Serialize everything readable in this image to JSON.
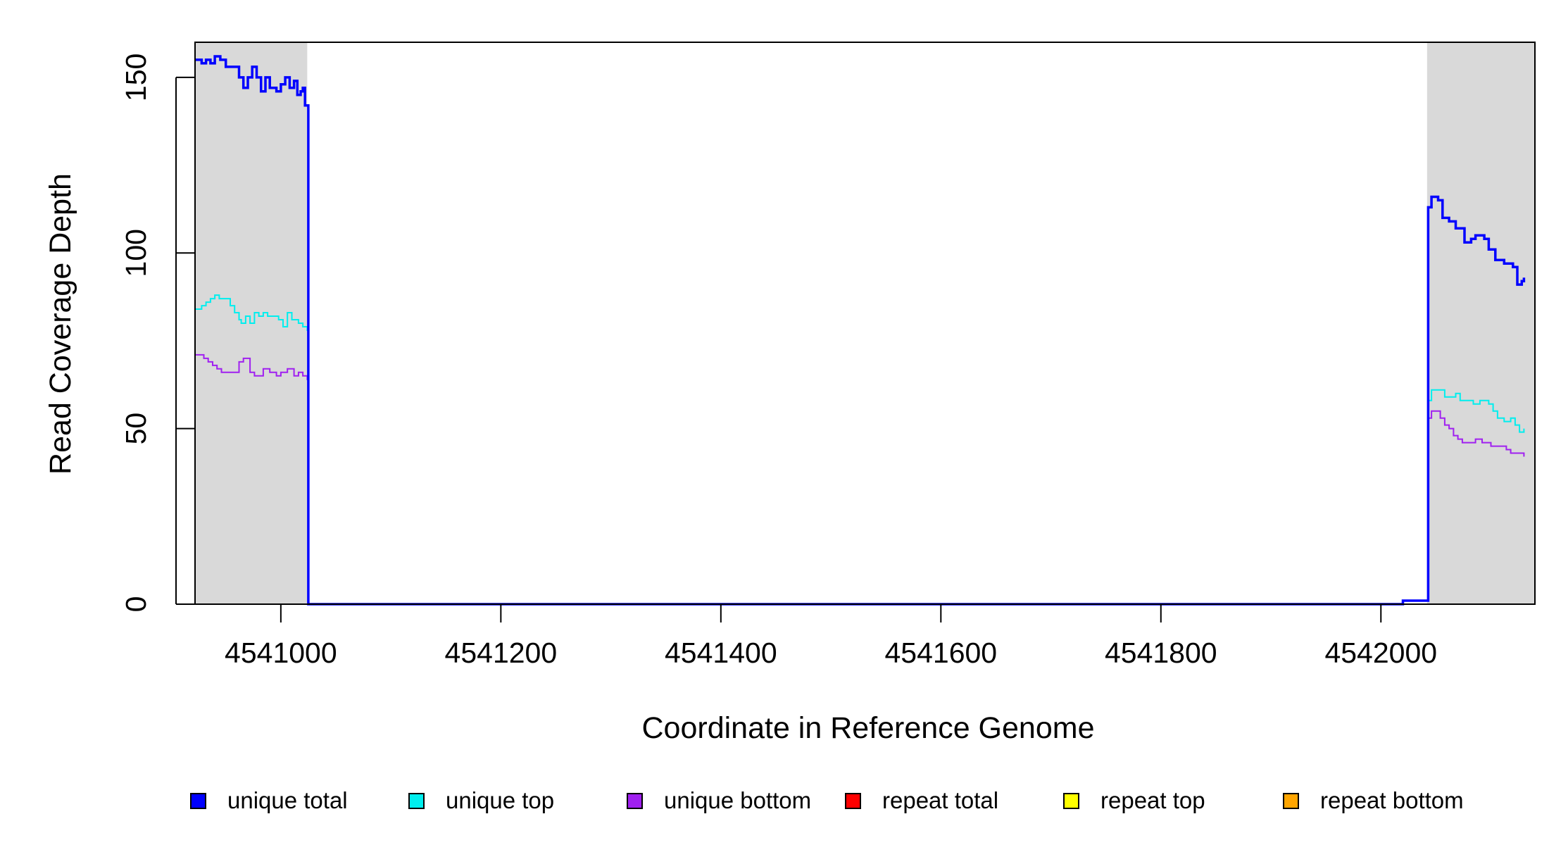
{
  "chart_data": {
    "type": "line",
    "title": "",
    "xlabel": "Coordinate in Reference Genome",
    "ylabel": "Read Coverage Depth",
    "xlim": [
      4540922,
      4542140
    ],
    "ylim": [
      0,
      160
    ],
    "xticks": [
      4541000,
      4541200,
      4541400,
      4541600,
      4541800,
      4542000
    ],
    "yticks": [
      0,
      50,
      100,
      150
    ],
    "shaded_regions": [
      [
        4540922,
        4541024
      ],
      [
        4542042,
        4542140
      ]
    ],
    "shade_color": "#d9d9d9",
    "grid": false,
    "legend_position": "bottom",
    "series": [
      {
        "name": "unique total",
        "color": "#0000ff",
        "points": [
          [
            4540922,
            155
          ],
          [
            4540928,
            154
          ],
          [
            4540932,
            155
          ],
          [
            4540936,
            154
          ],
          [
            4540940,
            156
          ],
          [
            4540945,
            155
          ],
          [
            4540950,
            153
          ],
          [
            4540958,
            153
          ],
          [
            4540962,
            150
          ],
          [
            4540966,
            147
          ],
          [
            4540970,
            150
          ],
          [
            4540974,
            153
          ],
          [
            4540978,
            150
          ],
          [
            4540982,
            146
          ],
          [
            4540986,
            150
          ],
          [
            4540990,
            147
          ],
          [
            4540996,
            146
          ],
          [
            4541000,
            148
          ],
          [
            4541004,
            150
          ],
          [
            4541008,
            147
          ],
          [
            4541012,
            149
          ],
          [
            4541015,
            145
          ],
          [
            4541018,
            146
          ],
          [
            4541020,
            147
          ],
          [
            4541022,
            142
          ],
          [
            4541024,
            142
          ],
          [
            4541025,
            0
          ],
          [
            4542018,
            0
          ],
          [
            4542020,
            1
          ],
          [
            4542042,
            1
          ],
          [
            4542043,
            113
          ],
          [
            4542046,
            116
          ],
          [
            4542052,
            115
          ],
          [
            4542056,
            110
          ],
          [
            4542062,
            109
          ],
          [
            4542068,
            107
          ],
          [
            4542076,
            103
          ],
          [
            4542082,
            104
          ],
          [
            4542086,
            105
          ],
          [
            4542094,
            104
          ],
          [
            4542098,
            101
          ],
          [
            4542104,
            98
          ],
          [
            4542112,
            97
          ],
          [
            4542120,
            96
          ],
          [
            4542124,
            91
          ],
          [
            4542128,
            92
          ],
          [
            4542130,
            93
          ]
        ]
      },
      {
        "name": "unique top",
        "color": "#00eeee",
        "points": [
          [
            4540922,
            84
          ],
          [
            4540928,
            85
          ],
          [
            4540932,
            86
          ],
          [
            4540936,
            87
          ],
          [
            4540940,
            88
          ],
          [
            4540944,
            87
          ],
          [
            4540950,
            87
          ],
          [
            4540954,
            85
          ],
          [
            4540958,
            83
          ],
          [
            4540962,
            81
          ],
          [
            4540964,
            80
          ],
          [
            4540968,
            82
          ],
          [
            4540972,
            80
          ],
          [
            4540976,
            83
          ],
          [
            4540980,
            82
          ],
          [
            4540984,
            83
          ],
          [
            4540988,
            82
          ],
          [
            4540994,
            82
          ],
          [
            4540998,
            81
          ],
          [
            4541002,
            79
          ],
          [
            4541006,
            83
          ],
          [
            4541010,
            81
          ],
          [
            4541016,
            80
          ],
          [
            4541020,
            79
          ],
          [
            4541024,
            78
          ],
          [
            4541025,
            0
          ],
          [
            4542018,
            0
          ],
          [
            4542020,
            1
          ],
          [
            4542042,
            1
          ],
          [
            4542043,
            58
          ],
          [
            4542046,
            61
          ],
          [
            4542058,
            59
          ],
          [
            4542068,
            60
          ],
          [
            4542072,
            58
          ],
          [
            4542080,
            58
          ],
          [
            4542084,
            57
          ],
          [
            4542090,
            58
          ],
          [
            4542098,
            57
          ],
          [
            4542102,
            55
          ],
          [
            4542106,
            53
          ],
          [
            4542112,
            52
          ],
          [
            4542118,
            53
          ],
          [
            4542122,
            51
          ],
          [
            4542126,
            49
          ],
          [
            4542130,
            50
          ]
        ]
      },
      {
        "name": "unique bottom",
        "color": "#a020f0",
        "points": [
          [
            4540922,
            71
          ],
          [
            4540930,
            70
          ],
          [
            4540934,
            69
          ],
          [
            4540938,
            68
          ],
          [
            4540942,
            67
          ],
          [
            4540946,
            66
          ],
          [
            4540956,
            66
          ],
          [
            4540962,
            69
          ],
          [
            4540966,
            70
          ],
          [
            4540972,
            66
          ],
          [
            4540976,
            65
          ],
          [
            4540984,
            67
          ],
          [
            4540990,
            66
          ],
          [
            4540996,
            65
          ],
          [
            4541000,
            66
          ],
          [
            4541006,
            67
          ],
          [
            4541012,
            65
          ],
          [
            4541016,
            66
          ],
          [
            4541020,
            65
          ],
          [
            4541024,
            64
          ],
          [
            4541025,
            0
          ],
          [
            4542018,
            0
          ],
          [
            4542020,
            1
          ],
          [
            4542042,
            1
          ],
          [
            4542043,
            53
          ],
          [
            4542046,
            55
          ],
          [
            4542054,
            53
          ],
          [
            4542058,
            51
          ],
          [
            4542062,
            50
          ],
          [
            4542066,
            48
          ],
          [
            4542070,
            47
          ],
          [
            4542074,
            46
          ],
          [
            4542080,
            46
          ],
          [
            4542086,
            47
          ],
          [
            4542092,
            46
          ],
          [
            4542100,
            45
          ],
          [
            4542108,
            45
          ],
          [
            4542114,
            44
          ],
          [
            4542118,
            43
          ],
          [
            4542124,
            43
          ],
          [
            4542130,
            42
          ]
        ]
      },
      {
        "name": "repeat total",
        "color": "#ff0000",
        "points": [
          [
            4540922,
            0
          ],
          [
            4542140,
            0
          ]
        ]
      },
      {
        "name": "repeat top",
        "color": "#ffff00",
        "points": [
          [
            4540922,
            0
          ],
          [
            4542140,
            0
          ]
        ]
      },
      {
        "name": "repeat bottom",
        "color": "#ffa500",
        "points": [
          [
            4540922,
            0
          ],
          [
            4542140,
            0
          ]
        ]
      }
    ]
  }
}
